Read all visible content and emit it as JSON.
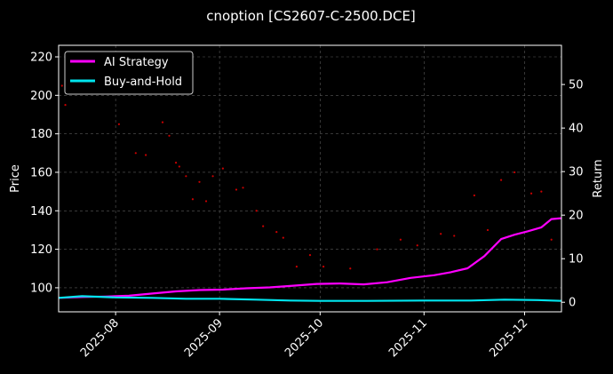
{
  "chart_data": {
    "type": "line",
    "title": "cnoption [CS2607-C-2500.DCE]",
    "xlabel": "",
    "ylabel": "Price",
    "y2label": "Return",
    "xlim": [
      "2025-07-15",
      "2025-12-12"
    ],
    "ylim": [
      87.5,
      226
    ],
    "y2lim": [
      -2.2,
      59
    ],
    "x_ticks": [
      "2025-08-01",
      "2025-09-01",
      "2025-10-01",
      "2025-11-01",
      "2025-12-01"
    ],
    "x_tick_labels": [
      "2025-08",
      "2025-09",
      "2025-10",
      "2025-11",
      "2025-12"
    ],
    "y_ticks": [
      100,
      120,
      140,
      160,
      180,
      200,
      220
    ],
    "y2_ticks": [
      0,
      10,
      20,
      30,
      40,
      50
    ],
    "grid": true,
    "legend_position": "top-left",
    "background": "#000000",
    "series": [
      {
        "name": "AI Strategy",
        "axis": "right",
        "color": "#ff00ff",
        "x": [
          "2025-07-15",
          "2025-07-22",
          "2025-07-29",
          "2025-08-05",
          "2025-08-12",
          "2025-08-19",
          "2025-08-26",
          "2025-09-02",
          "2025-09-09",
          "2025-09-16",
          "2025-09-23",
          "2025-09-30",
          "2025-10-07",
          "2025-10-14",
          "2025-10-21",
          "2025-10-28",
          "2025-11-04",
          "2025-11-09",
          "2025-11-14",
          "2025-11-19",
          "2025-11-24",
          "2025-11-28",
          "2025-12-02",
          "2025-12-06",
          "2025-12-09",
          "2025-12-12"
        ],
        "y": [
          1.0,
          1.2,
          1.3,
          1.5,
          2.0,
          2.5,
          2.8,
          2.9,
          3.2,
          3.4,
          3.8,
          4.2,
          4.3,
          4.1,
          4.6,
          5.6,
          6.2,
          6.9,
          7.8,
          10.6,
          14.5,
          15.5,
          16.3,
          17.2,
          19.1,
          19.3
        ]
      },
      {
        "name": "Buy-and-Hold",
        "axis": "right",
        "color": "#00e5ee",
        "x": [
          "2025-07-15",
          "2025-07-22",
          "2025-08-01",
          "2025-08-12",
          "2025-08-22",
          "2025-09-01",
          "2025-09-12",
          "2025-09-22",
          "2025-10-01",
          "2025-10-15",
          "2025-11-01",
          "2025-11-15",
          "2025-11-25",
          "2025-12-05",
          "2025-12-12"
        ],
        "y": [
          1.0,
          1.4,
          1.1,
          1.0,
          0.8,
          0.8,
          0.6,
          0.4,
          0.3,
          0.3,
          0.4,
          0.4,
          0.6,
          0.5,
          0.3
        ]
      }
    ],
    "scatter": {
      "axis": "left",
      "color": "#cc0000",
      "x": [
        "2025-07-16",
        "2025-07-17",
        "2025-08-02",
        "2025-08-07",
        "2025-08-10",
        "2025-08-15",
        "2025-08-17",
        "2025-08-19",
        "2025-08-20",
        "2025-08-22",
        "2025-08-24",
        "2025-08-26",
        "2025-08-28",
        "2025-08-30",
        "2025-09-02",
        "2025-09-06",
        "2025-09-08",
        "2025-09-12",
        "2025-09-14",
        "2025-09-18",
        "2025-09-20",
        "2025-09-24",
        "2025-09-28",
        "2025-10-02",
        "2025-10-10",
        "2025-10-18",
        "2025-10-25",
        "2025-10-30",
        "2025-11-06",
        "2025-11-10",
        "2025-11-16",
        "2025-11-20",
        "2025-11-24",
        "2025-11-28",
        "2025-12-03",
        "2025-12-06",
        "2025-12-09"
      ],
      "y": [
        205,
        195,
        185,
        170,
        169,
        186,
        179,
        165,
        163,
        158,
        146,
        155,
        145,
        158,
        162,
        151,
        152,
        140,
        132,
        129,
        126,
        111,
        117,
        111,
        110,
        120,
        125,
        122,
        128,
        127,
        148,
        130,
        156,
        160,
        149,
        150,
        125
      ]
    }
  }
}
